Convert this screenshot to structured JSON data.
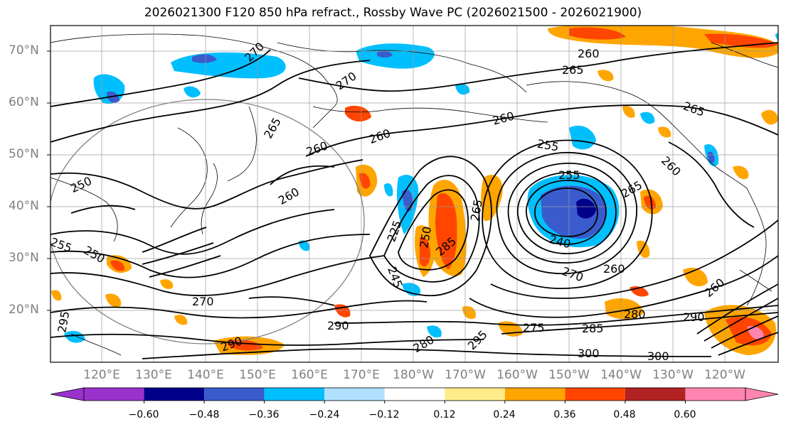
{
  "title": "2026021300 F120 850 hPa refract., Rossby Wave PC (2026021500 - 2026021900)",
  "lat_labels": [
    "70°N",
    "60°N",
    "50°N",
    "40°N",
    "30°N",
    "20°N"
  ],
  "lon_labels": [
    "120°E",
    "130°E",
    "140°E",
    "150°E",
    "160°E",
    "170°E",
    "180°W",
    "170°W",
    "160°W",
    "150°W",
    "140°W",
    "130°W",
    "120°W"
  ],
  "contour_labels": [
    {
      "text": "270"
    },
    {
      "text": "270"
    },
    {
      "text": "260"
    },
    {
      "text": "265"
    },
    {
      "text": "265"
    },
    {
      "text": "260"
    },
    {
      "text": "260"
    },
    {
      "text": "260"
    },
    {
      "text": "265"
    },
    {
      "text": "255"
    },
    {
      "text": "255"
    },
    {
      "text": "250"
    },
    {
      "text": "260"
    },
    {
      "text": "260"
    },
    {
      "text": "265"
    },
    {
      "text": "240"
    },
    {
      "text": "270"
    },
    {
      "text": "260"
    },
    {
      "text": "260"
    },
    {
      "text": "280"
    },
    {
      "text": "290"
    },
    {
      "text": "285"
    },
    {
      "text": "275"
    },
    {
      "text": "290"
    },
    {
      "text": "295"
    },
    {
      "text": "300"
    },
    {
      "text": "300"
    },
    {
      "text": "270"
    },
    {
      "text": "290"
    },
    {
      "text": "250"
    },
    {
      "text": "255"
    },
    {
      "text": "265"
    },
    {
      "text": "225"
    },
    {
      "text": "250"
    },
    {
      "text": "245"
    },
    {
      "text": "295"
    },
    {
      "text": "280"
    },
    {
      "text": "285"
    }
  ],
  "colorbar": {
    "ticks": [
      "−0.60",
      "−0.48",
      "−0.36",
      "−0.24",
      "−0.12",
      "0.12",
      "0.24",
      "0.36",
      "0.48",
      "0.60"
    ],
    "colors": [
      "#9932cc",
      "#00008b",
      "#3a5bcc",
      "#00bfff",
      "#b0e0ff",
      "#ffffff",
      "#ffeb8a",
      "#ffa500",
      "#ff4500",
      "#b22222",
      "#ff85b0"
    ]
  }
}
